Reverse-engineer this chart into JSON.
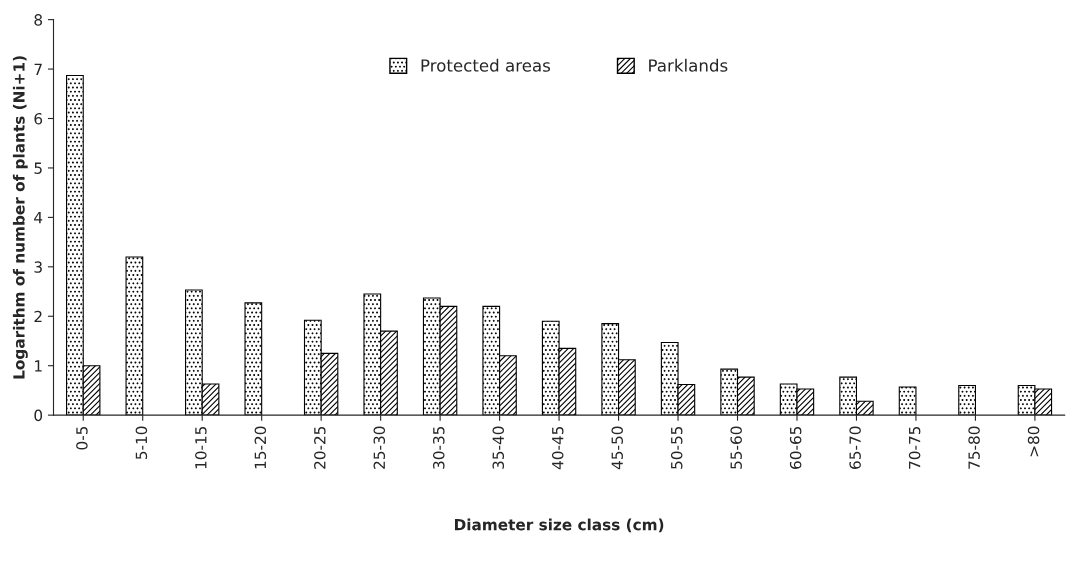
{
  "chart_data": {
    "type": "bar",
    "xlabel": "Diameter size class (cm)",
    "ylabel": "Logarithm of number of plants (Ni+1)",
    "categories": [
      "0-5",
      "5-10",
      "10-15",
      "15-20",
      "20-25",
      "25-30",
      "30-35",
      "35-40",
      "40-45",
      "45-50",
      "50-55",
      "55-60",
      "60-65",
      "65-70",
      "70-75",
      "75-80",
      ">80"
    ],
    "series": [
      {
        "name": "Protected areas",
        "color": "#000000",
        "values": [
          6.87,
          3.2,
          2.53,
          2.27,
          1.92,
          2.45,
          2.37,
          2.2,
          1.9,
          1.85,
          1.47,
          0.93,
          0.63,
          0.77,
          0.57,
          0.6,
          0.6
        ]
      },
      {
        "name": "Parklands",
        "color": "#000000",
        "values": [
          1.0,
          null,
          0.63,
          null,
          1.25,
          1.7,
          2.2,
          1.2,
          1.35,
          1.12,
          0.62,
          0.77,
          0.53,
          0.28,
          null,
          null,
          0.53
        ]
      }
    ],
    "ylim": [
      0,
      8
    ],
    "yticks": [
      0,
      1,
      2,
      3,
      4,
      5,
      6,
      7,
      8
    ],
    "grid": false,
    "legend": "top"
  }
}
